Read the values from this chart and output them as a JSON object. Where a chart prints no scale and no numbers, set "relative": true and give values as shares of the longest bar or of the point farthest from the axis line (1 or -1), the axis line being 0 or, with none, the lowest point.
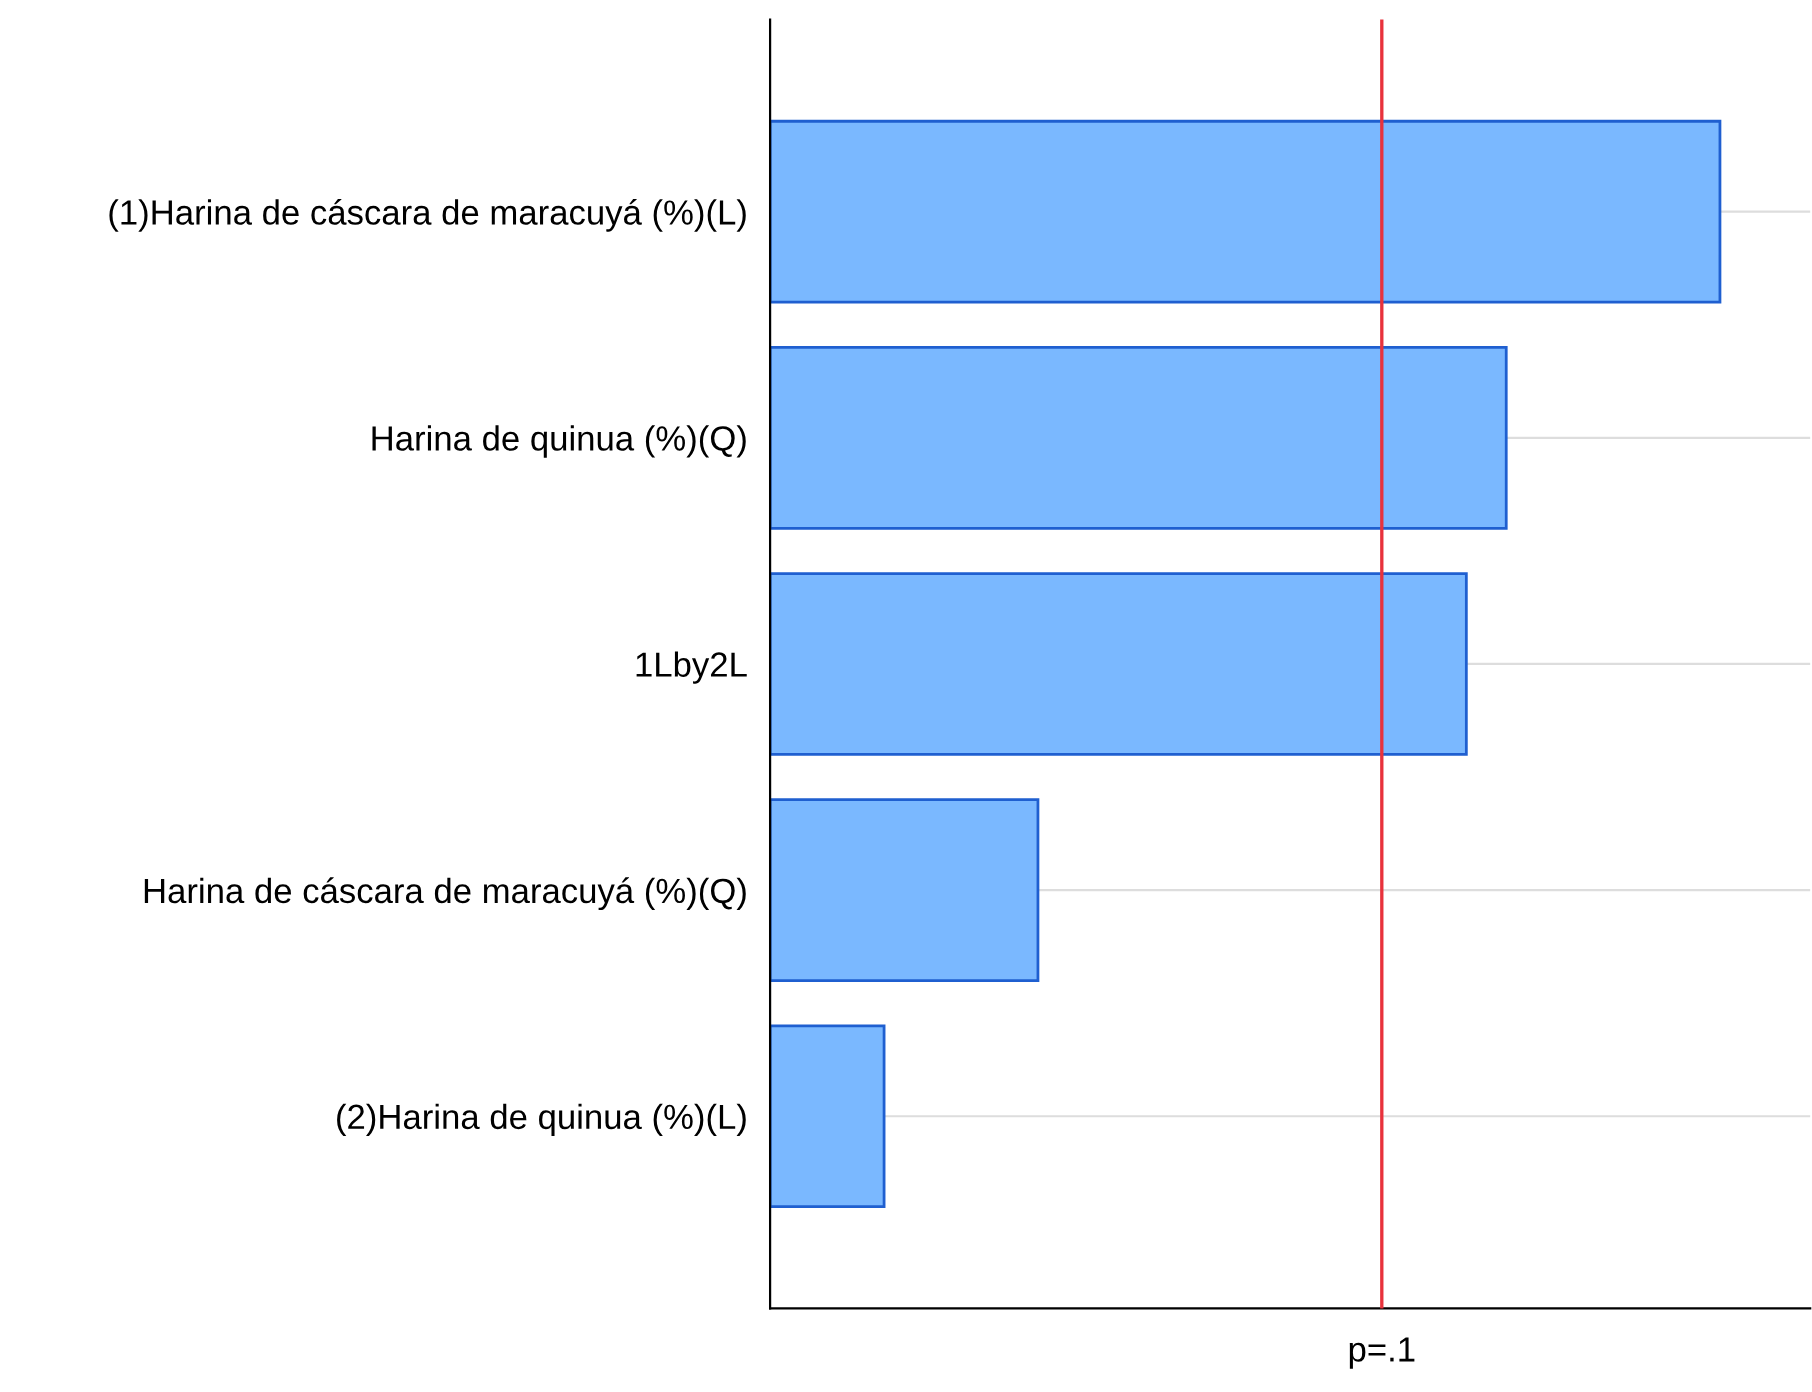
{
  "chart_data": {
    "type": "bar",
    "orientation": "horizontal",
    "relative": true,
    "categories": [
      "(1)Harina de cáscara de maracuyá (%)(L)",
      "Harina de quinua (%)(Q)",
      "1Lby2L",
      "Harina de cáscara de maracuyá (%)(Q)",
      "(2)Harina de quinua (%)(L)"
    ],
    "values": [
      1,
      0.775,
      0.733,
      0.282,
      0.12
    ],
    "color": "#7ab8ff",
    "ref_lines": [
      {
        "axis": "x",
        "value": 0.644,
        "label": "p=.1",
        "color": "#e8323c",
        "line_style": "solid"
      }
    ],
    "grid": "y"
  }
}
